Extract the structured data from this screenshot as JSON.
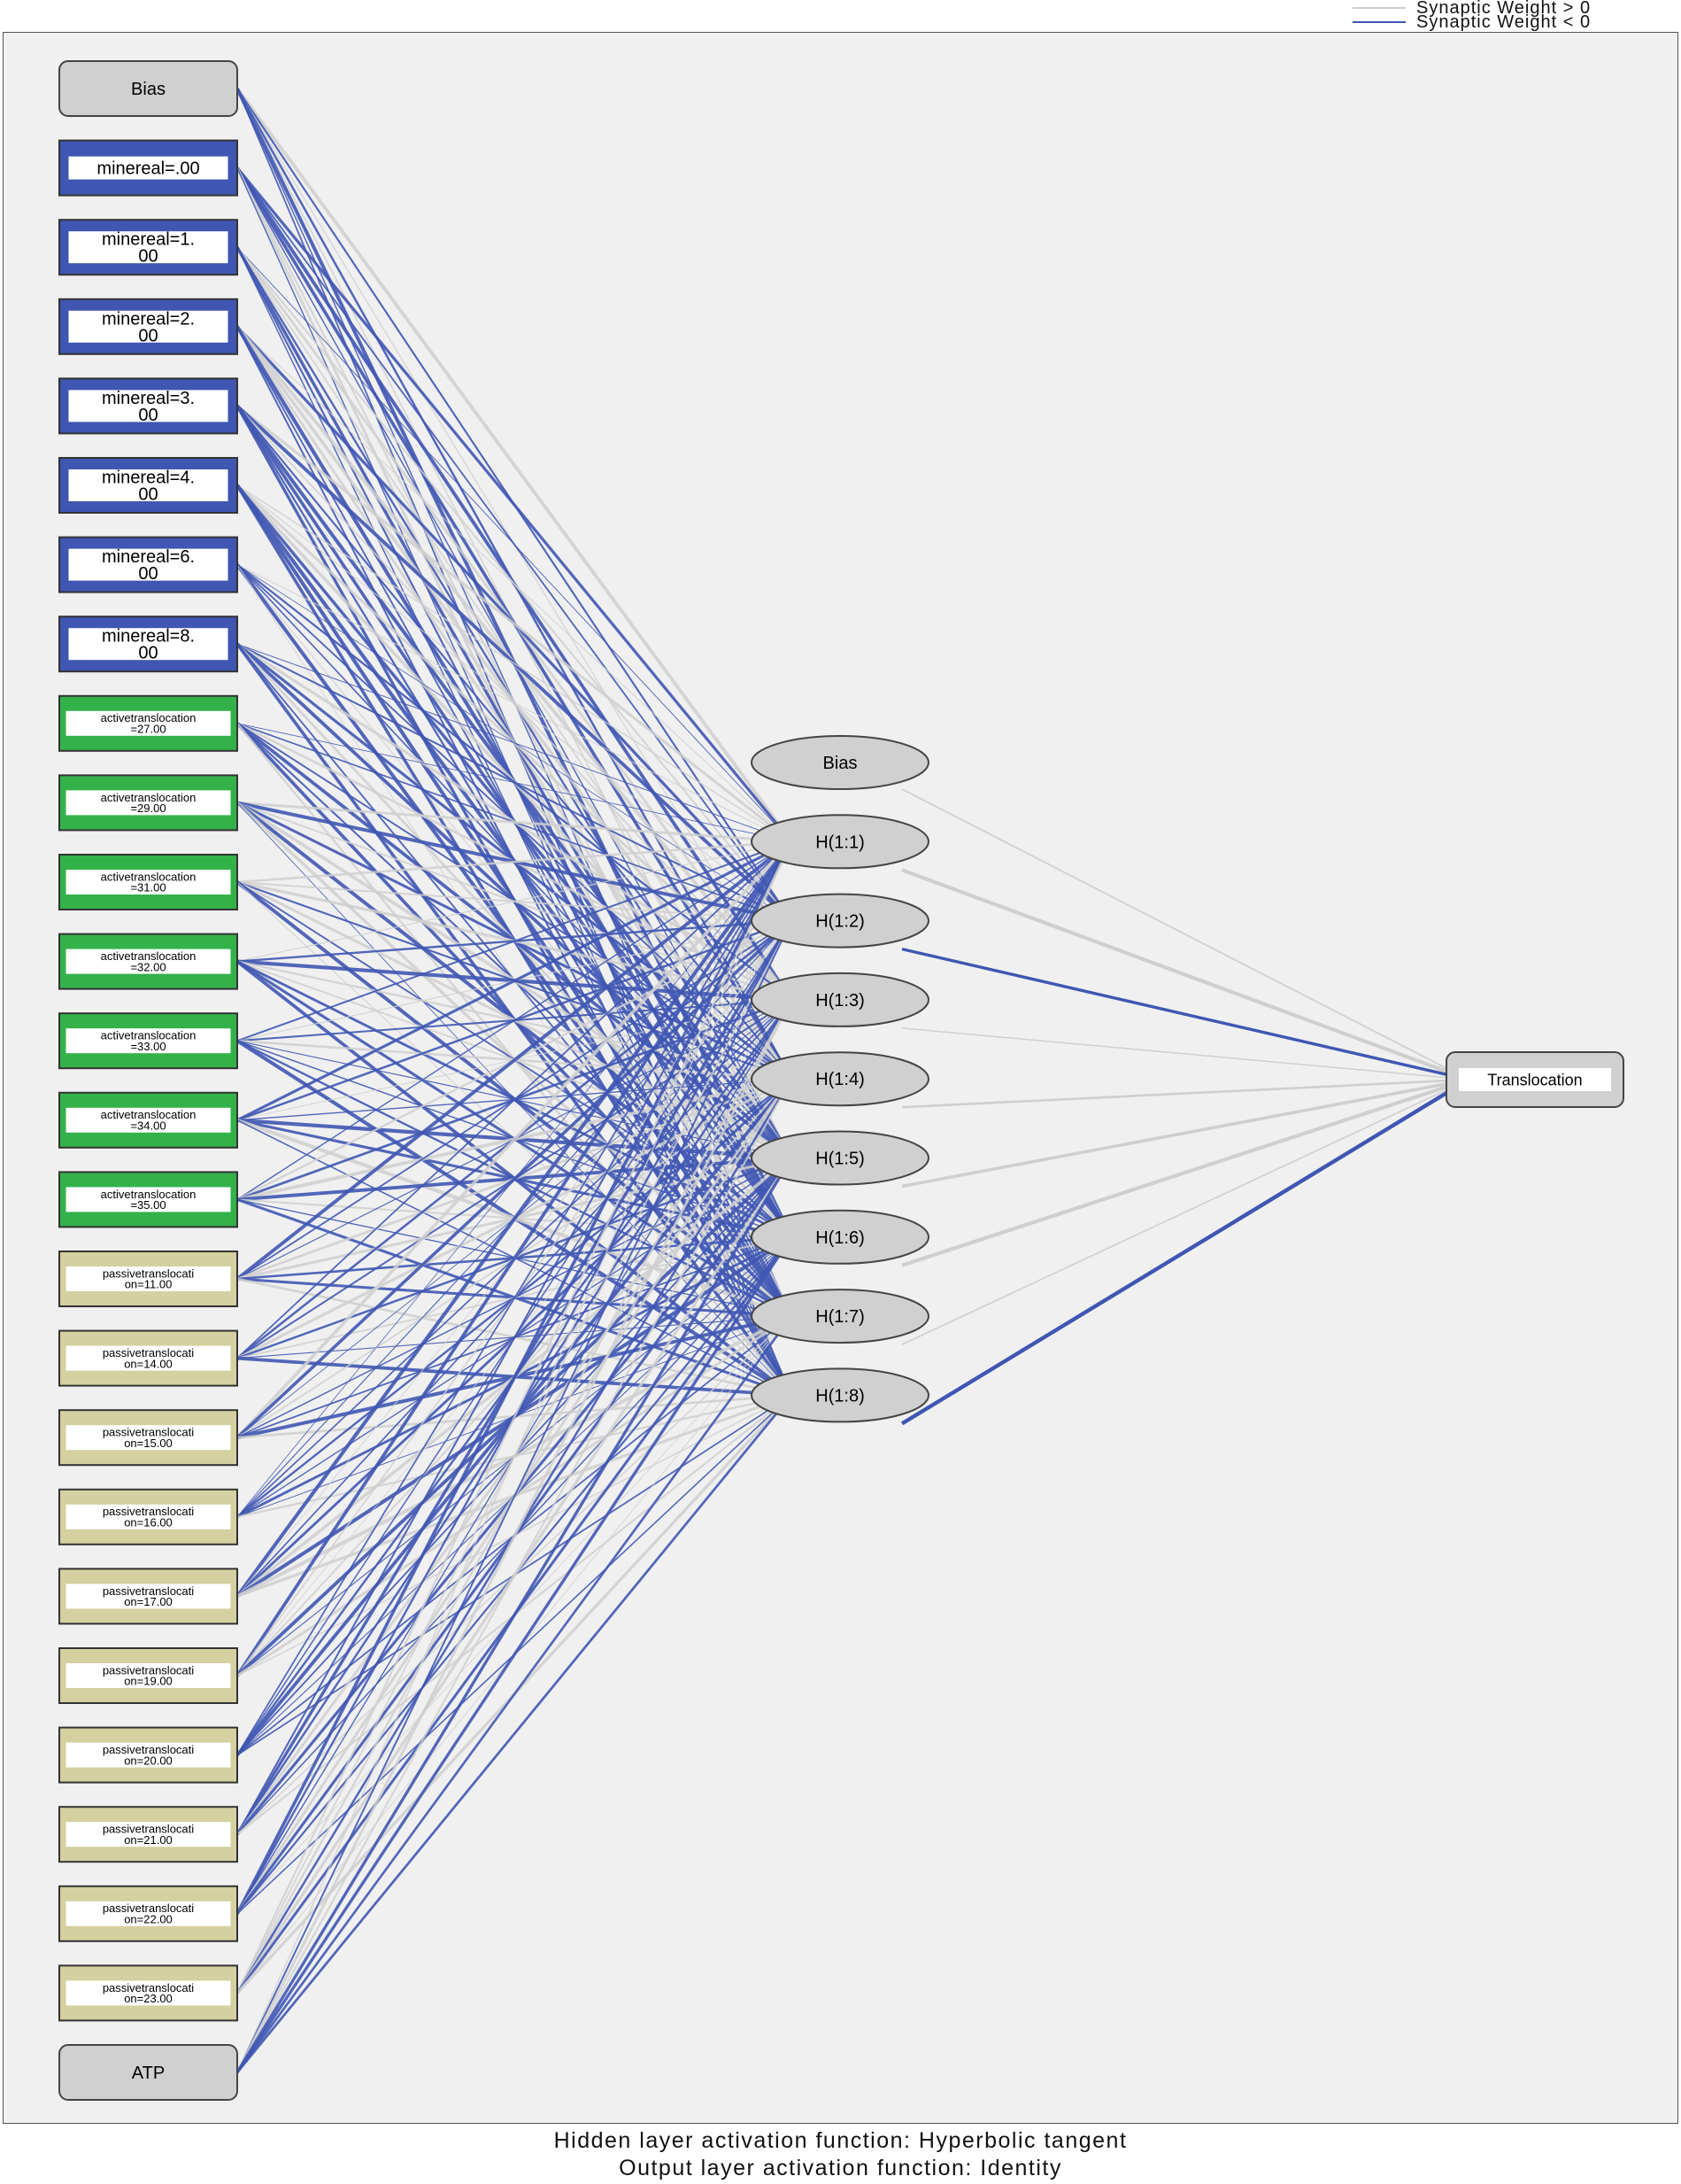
{
  "legend": {
    "positive_label": "Synaptic Weight > 0",
    "negative_label": "Synaptic Weight < 0",
    "positive_color": "#cfcfcf",
    "negative_color": "#3f56b2"
  },
  "input_layer": {
    "bias": "Bias",
    "nodes": [
      {
        "label": "minereal=.00",
        "group": "mineral"
      },
      {
        "label": "minereal=1.\n00",
        "group": "mineral"
      },
      {
        "label": "minereal=2.\n00",
        "group": "mineral"
      },
      {
        "label": "minereal=3.\n00",
        "group": "mineral"
      },
      {
        "label": "minereal=4.\n00",
        "group": "mineral"
      },
      {
        "label": "minereal=6.\n00",
        "group": "mineral"
      },
      {
        "label": "minereal=8.\n00",
        "group": "mineral"
      },
      {
        "label": "activetranslocation\n=27.00",
        "group": "active"
      },
      {
        "label": "activetranslocation\n=29.00",
        "group": "active"
      },
      {
        "label": "activetranslocation\n=31.00",
        "group": "active"
      },
      {
        "label": "activetranslocation\n=32.00",
        "group": "active"
      },
      {
        "label": "activetranslocation\n=33.00",
        "group": "active"
      },
      {
        "label": "activetranslocation\n=34.00",
        "group": "active"
      },
      {
        "label": "activetranslocation\n=35.00",
        "group": "active"
      },
      {
        "label": "passivetranslocati\non=11.00",
        "group": "passive"
      },
      {
        "label": "passivetranslocati\non=14.00",
        "group": "passive"
      },
      {
        "label": "passivetranslocati\non=15.00",
        "group": "passive"
      },
      {
        "label": "passivetranslocati\non=16.00",
        "group": "passive"
      },
      {
        "label": "passivetranslocati\non=17.00",
        "group": "passive"
      },
      {
        "label": "passivetranslocati\non=19.00",
        "group": "passive"
      },
      {
        "label": "passivetranslocati\non=20.00",
        "group": "passive"
      },
      {
        "label": "passivetranslocati\non=21.00",
        "group": "passive"
      },
      {
        "label": "passivetranslocati\non=22.00",
        "group": "passive"
      },
      {
        "label": "passivetranslocati\non=23.00",
        "group": "passive"
      }
    ],
    "covariate": "ATP"
  },
  "hidden_layer": {
    "bias": "Bias",
    "nodes": [
      "H(1:1)",
      "H(1:2)",
      "H(1:3)",
      "H(1:4)",
      "H(1:5)",
      "H(1:6)",
      "H(1:7)",
      "H(1:8)"
    ]
  },
  "output_layer": {
    "nodes": [
      "Translocation"
    ]
  },
  "colors": {
    "mineral": "#3f56b2",
    "active": "#33b24a",
    "passive": "#d4d0a0",
    "gray_node": "#d0d0d0"
  },
  "hidden_to_output_signs": [
    "positive",
    "positive",
    "negative",
    "positive",
    "positive",
    "positive",
    "positive",
    "positive",
    "negative"
  ],
  "footer": {
    "line1": "Hidden layer activation function: Hyperbolic tangent",
    "line2": "Output layer activation function: Identity"
  }
}
